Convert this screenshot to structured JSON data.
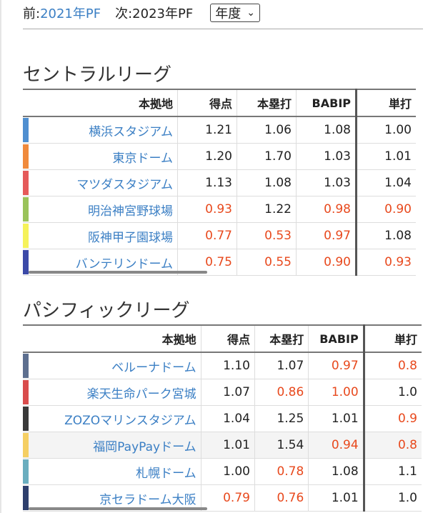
{
  "topbar": {
    "prev_prefix": "前:",
    "prev_link": "2021年PF",
    "next_prefix": "次:2023年PF",
    "select_value": "年度"
  },
  "central": {
    "title": "セントラルリーグ",
    "headers": [
      "本拠地",
      "得点",
      "本塁打",
      "BABIP",
      "単打"
    ],
    "rows": [
      {
        "color": "#4f8fd0",
        "name": "横浜スタジアム",
        "v": [
          "1.21",
          "1.06",
          "1.08",
          "1.00"
        ],
        "red": [
          false,
          false,
          false,
          false
        ]
      },
      {
        "color": "#f08a3c",
        "name": "東京ドーム",
        "v": [
          "1.20",
          "1.70",
          "1.03",
          "1.01"
        ],
        "red": [
          false,
          false,
          false,
          false
        ]
      },
      {
        "color": "#e55a5a",
        "name": "マツダスタジアム",
        "v": [
          "1.13",
          "1.08",
          "1.03",
          "1.04"
        ],
        "red": [
          false,
          false,
          false,
          false
        ]
      },
      {
        "color": "#9ac35a",
        "name": "明治神宮野球場",
        "v": [
          "0.93",
          "1.22",
          "0.98",
          "0.90"
        ],
        "red": [
          true,
          false,
          true,
          true
        ]
      },
      {
        "color": "#f5f25a",
        "name": "阪神甲子園球場",
        "v": [
          "0.77",
          "0.53",
          "0.97",
          "1.08"
        ],
        "red": [
          true,
          true,
          true,
          false
        ]
      },
      {
        "color": "#3c4aa8",
        "name": "バンテリンドーム",
        "v": [
          "0.75",
          "0.55",
          "0.90",
          "0.93"
        ],
        "red": [
          true,
          true,
          true,
          true
        ]
      }
    ]
  },
  "pacific": {
    "title": "パシフィックリーグ",
    "headers": [
      "本拠地",
      "得点",
      "本塁打",
      "BABIP",
      "単打"
    ],
    "rows": [
      {
        "color": "#5d6f8f",
        "name": "ベルーナドーム",
        "v": [
          "1.10",
          "1.07",
          "0.97",
          "0.8"
        ],
        "red": [
          false,
          false,
          true,
          true
        ]
      },
      {
        "color": "#d94c4c",
        "name": "楽天生命パーク宮城",
        "v": [
          "1.07",
          "0.86",
          "1.00",
          "1.0"
        ],
        "red": [
          false,
          true,
          true,
          false
        ]
      },
      {
        "color": "#3a3a3a",
        "name": "ZOZOマリンスタジアム",
        "v": [
          "1.04",
          "1.25",
          "1.01",
          "0.9"
        ],
        "red": [
          false,
          false,
          false,
          true
        ]
      },
      {
        "color": "#f5cf63",
        "name": "福岡PayPayドーム",
        "v": [
          "1.01",
          "1.54",
          "0.94",
          "0.8"
        ],
        "red": [
          false,
          false,
          true,
          true
        ]
      },
      {
        "color": "#6aaebf",
        "name": "札幌ドーム",
        "v": [
          "1.00",
          "0.78",
          "1.08",
          "1.1"
        ],
        "red": [
          false,
          true,
          false,
          false
        ]
      },
      {
        "color": "#2e3f6d",
        "name": "京セラドーム大阪",
        "v": [
          "0.79",
          "0.76",
          "1.01",
          "1.0"
        ],
        "red": [
          true,
          true,
          false,
          false
        ]
      }
    ]
  }
}
